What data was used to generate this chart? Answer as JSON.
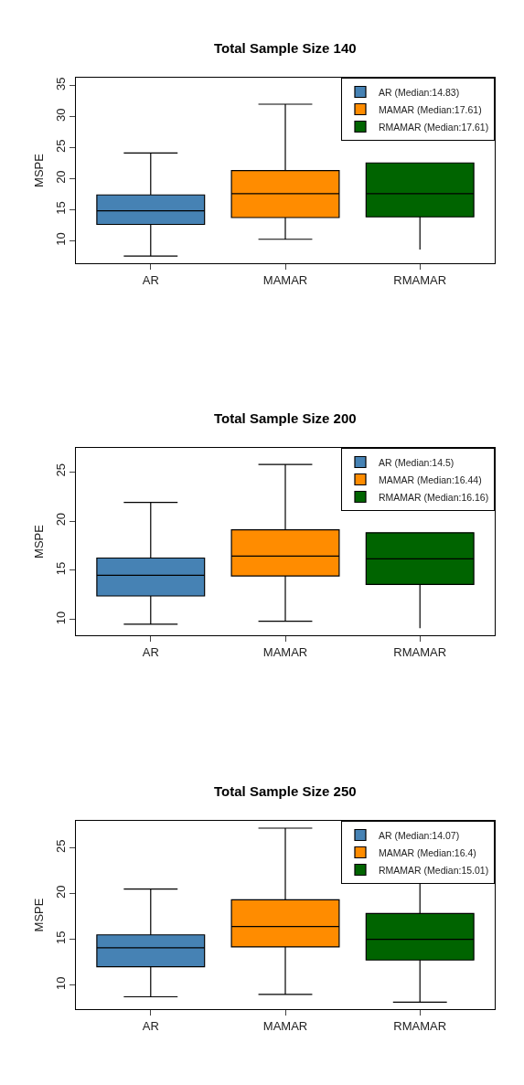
{
  "chart_data": [
    {
      "type": "box",
      "title": "Total Sample Size 140",
      "ylabel": "MSPE",
      "categories": [
        "AR",
        "MAMAR",
        "RMAMAR"
      ],
      "ylim": [
        6.4,
        36.27
      ],
      "yticks": [
        10,
        15,
        20,
        25,
        30,
        35
      ],
      "legend": "top right",
      "series": [
        {
          "name": "AR (Median:14.83)",
          "color": "#4682b4",
          "x": [
            "AR"
          ],
          "boxes": [
            {
              "low": 7.56,
              "q1": 12.65,
              "median": 14.83,
              "q3": 17.4,
              "high": 24.14
            }
          ]
        },
        {
          "name": "MAMAR (Median:17.61)",
          "color": "#ff8c00",
          "x": [
            "MAMAR"
          ],
          "boxes": [
            {
              "low": 10.26,
              "q1": 13.76,
              "median": 17.61,
              "q3": 21.33,
              "high": 32.0
            }
          ]
        },
        {
          "name": "RMAMAR (Median:17.61)",
          "color": "#006400",
          "x": [
            "RMAMAR"
          ],
          "boxes": [
            {
              "low": 8.6,
              "q1": 13.87,
              "median": 17.61,
              "q3": 22.55,
              "high": null
            }
          ]
        }
      ]
    },
    {
      "type": "box",
      "title": "Total Sample Size 200",
      "ylabel": "MSPE",
      "categories": [
        "AR",
        "MAMAR",
        "RMAMAR"
      ],
      "ylim": [
        8.41,
        27.43
      ],
      "yticks": [
        10,
        15,
        20,
        25
      ],
      "legend": "top right",
      "series": [
        {
          "name": "AR (Median:14.5)",
          "color": "#4682b4",
          "x": [
            "AR"
          ],
          "boxes": [
            {
              "low": 9.53,
              "q1": 12.4,
              "median": 14.5,
              "q3": 16.25,
              "high": 21.89
            }
          ]
        },
        {
          "name": "MAMAR (Median:16.44)",
          "color": "#ff8c00",
          "x": [
            "MAMAR"
          ],
          "boxes": [
            {
              "low": 9.83,
              "q1": 14.43,
              "median": 16.44,
              "q3": 19.12,
              "high": 25.74
            }
          ]
        },
        {
          "name": "RMAMAR (Median:16.16)",
          "color": "#006400",
          "x": [
            "RMAMAR"
          ],
          "boxes": [
            {
              "low": 9.12,
              "q1": 13.58,
              "median": 16.16,
              "q3": 18.82,
              "high": null
            }
          ]
        }
      ]
    },
    {
      "type": "box",
      "title": "Total Sample Size 250",
      "ylabel": "MSPE",
      "categories": [
        "AR",
        "MAMAR",
        "RMAMAR"
      ],
      "ylim": [
        7.37,
        27.96
      ],
      "yticks": [
        10,
        15,
        20,
        25
      ],
      "legend": "top right",
      "series": [
        {
          "name": "AR (Median:14.07)",
          "color": "#4682b4",
          "x": [
            "AR"
          ],
          "boxes": [
            {
              "low": 8.72,
              "q1": 12.01,
              "median": 14.07,
              "q3": 15.49,
              "high": 20.5
            }
          ]
        },
        {
          "name": "MAMAR (Median:16.4)",
          "color": "#ff8c00",
          "x": [
            "MAMAR"
          ],
          "boxes": [
            {
              "low": 8.98,
              "q1": 14.17,
              "median": 16.4,
              "q3": 19.33,
              "high": 27.16
            }
          ]
        },
        {
          "name": "RMAMAR (Median:15.01)",
          "color": "#006400",
          "x": [
            "RMAMAR"
          ],
          "boxes": [
            {
              "low": 8.13,
              "q1": 12.74,
              "median": 15.01,
              "q3": 17.83,
              "high": 21.93
            }
          ]
        }
      ]
    }
  ]
}
